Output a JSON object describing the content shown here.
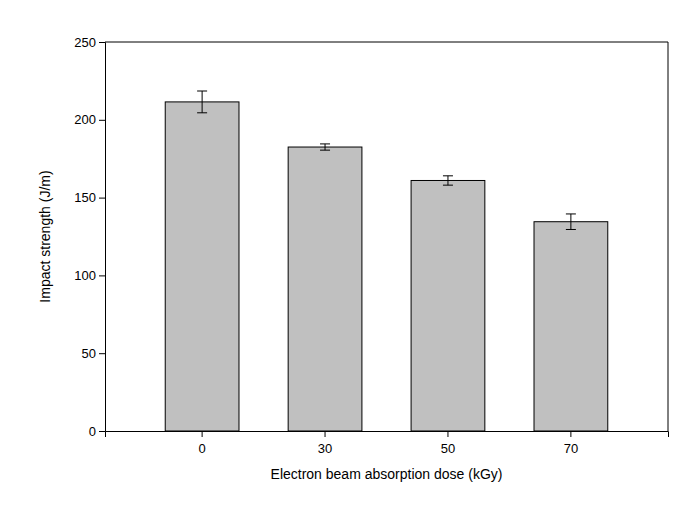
{
  "chart_data": {
    "type": "bar",
    "x_label": "Electron beam absorption dose (kGy)",
    "y_label": "Impact strength (J/m)",
    "categories": [
      "0",
      "30",
      "50",
      "70"
    ],
    "values": [
      211.5,
      182.5,
      161,
      134.5
    ],
    "errors": [
      7,
      2,
      3,
      5
    ],
    "color": "#c0c0c0",
    "ylim": [
      0,
      250
    ],
    "yticks": [
      0,
      50,
      100,
      150,
      200,
      250
    ],
    "grid": false
  }
}
